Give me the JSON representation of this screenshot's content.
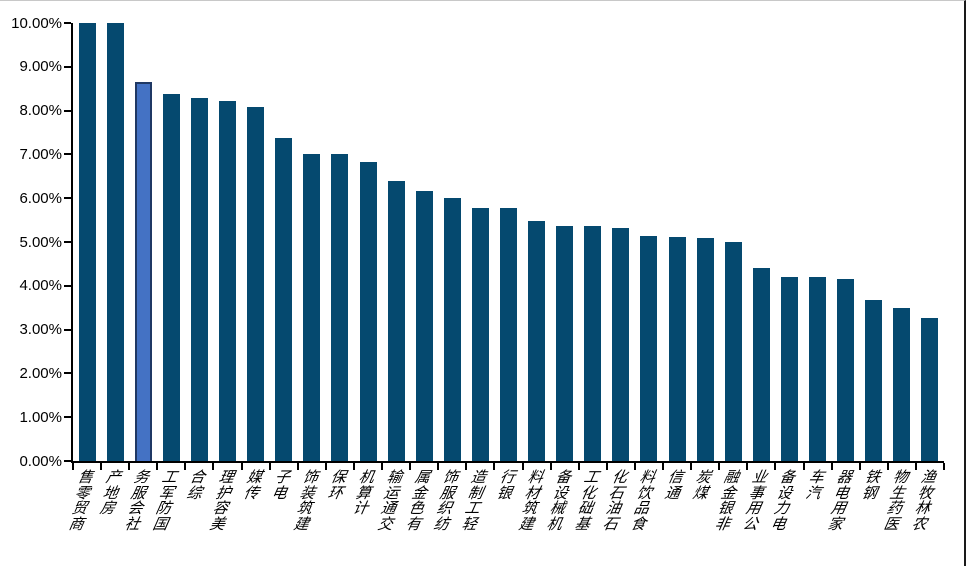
{
  "chart_data": {
    "type": "bar",
    "title": "",
    "xlabel": "",
    "ylabel": "",
    "grid": false,
    "legend": false,
    "ylim": [
      0,
      10
    ],
    "ytick_step": 1,
    "ytick_labels": [
      "0.00%",
      "1.00%",
      "2.00%",
      "3.00%",
      "4.00%",
      "5.00%",
      "6.00%",
      "7.00%",
      "8.00%",
      "9.00%",
      "10.00%"
    ],
    "categories": [
      "商贸零售",
      "房地产",
      "社会服务",
      "国防军工",
      "综合",
      "美容护理",
      "传媒",
      "电子",
      "建筑装饰",
      "环保",
      "计算机",
      "交通运输",
      "有色金属",
      "纺织服饰",
      "轻工制造",
      "银行",
      "建筑材料",
      "机械设备",
      "基础化工",
      "石油石化",
      "食品饮料",
      "通信",
      "煤炭",
      "非银金融",
      "公用事业",
      "电力设备",
      "汽车",
      "家用电器",
      "钢铁",
      "医药生物",
      "农林牧渔"
    ],
    "values": [
      10.0,
      10.0,
      8.66,
      8.39,
      8.29,
      8.23,
      8.09,
      7.37,
      7.0,
      7.0,
      6.82,
      6.4,
      6.16,
      6.01,
      5.78,
      5.78,
      5.48,
      5.37,
      5.37,
      5.31,
      5.14,
      5.12,
      5.09,
      5.0,
      4.41,
      4.19,
      4.19,
      4.16,
      3.67,
      3.49,
      3.27
    ],
    "highlight": {
      "index": 2,
      "category": "社会服务",
      "fill": "#4472C4",
      "border": "#1F3864"
    },
    "bar_color": "#05496F",
    "axis_color": "#000000",
    "text_color": "#000000",
    "background_color": "#FFFFFF"
  }
}
